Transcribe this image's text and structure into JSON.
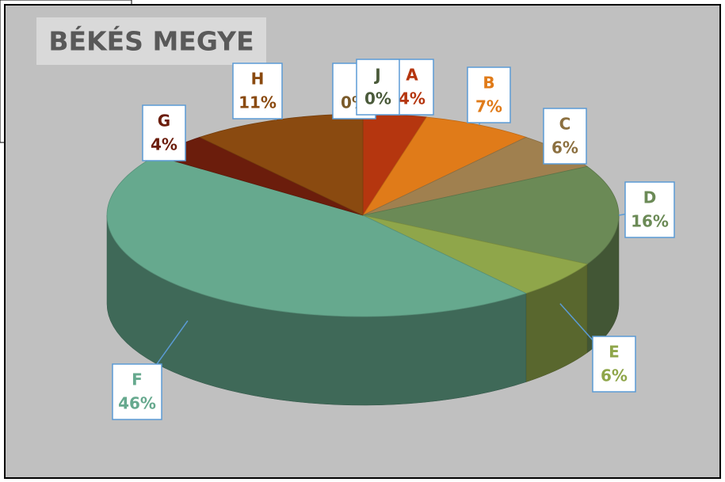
{
  "chart_data": {
    "type": "pie3d",
    "title": "BÉKÉS MEGYE",
    "categories": [
      "A",
      "B",
      "C",
      "D",
      "E",
      "F",
      "G",
      "H",
      null,
      "J"
    ],
    "values": [
      4,
      7,
      6,
      16,
      6,
      46,
      4,
      11,
      0,
      0
    ],
    "value_labels": [
      "4%",
      "7%",
      "6%",
      "16%",
      "6%",
      "46%",
      "4%",
      "11%",
      "0%",
      "0%"
    ],
    "colors": [
      "#b5360f",
      "#e07b19",
      "#a0804f",
      "#6b8a56",
      "#8fa64a",
      "#66a98e",
      "#6b1d0c",
      "#8a4a10",
      "#7a5a2a",
      "#4a5a3a"
    ]
  }
}
